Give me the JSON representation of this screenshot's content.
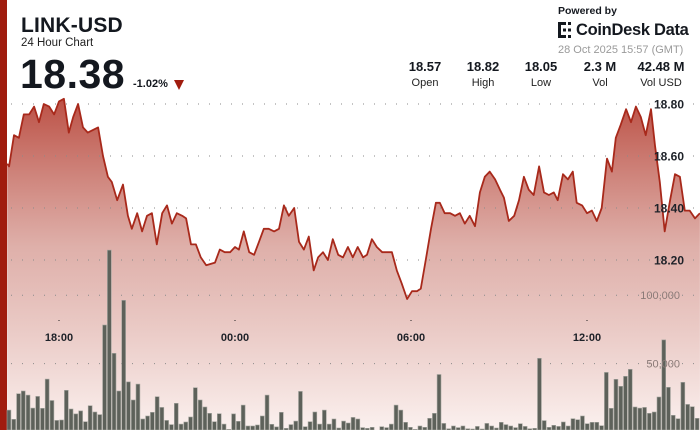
{
  "header": {
    "title": "LINK-USD",
    "subtitle": "24 Hour Chart",
    "price": "18.38",
    "change": "-1.02%",
    "change_direction_icon": "triangle-down-icon"
  },
  "stats": [
    {
      "value": "18.57",
      "label": "Open"
    },
    {
      "value": "18.82",
      "label": "High"
    },
    {
      "value": "18.05",
      "label": "Low"
    },
    {
      "value": "2.3 M",
      "label": "Vol"
    },
    {
      "value": "42.48 M",
      "label": "Vol USD"
    }
  ],
  "branding": {
    "powered_by": "Powered by",
    "logo_text": "CoinDesk Data",
    "timestamp": "28 Oct 2025 15:57 (GMT)"
  },
  "colors": {
    "accent": "#a01c0e",
    "line": "#a8291b",
    "volume_bar": "#5d615a",
    "negative": "#a01c0e"
  },
  "chart_data": {
    "type": "area",
    "price_axis": {
      "ticks": [
        "18.80",
        "18.60",
        "18.40",
        "18.20"
      ],
      "tick_values": [
        18.8,
        18.6,
        18.4,
        18.2
      ],
      "position": "right"
    },
    "volume_axis": {
      "ticks": [
        "100,000",
        "50,000"
      ],
      "tick_values": [
        100000,
        50000
      ]
    },
    "time_axis": {
      "ticks": [
        "18:00",
        "00:00",
        "06:00",
        "12:00"
      ]
    },
    "grid": "dotted",
    "price_series": [
      [
        "16:14",
        18.57
      ],
      [
        "16:18",
        18.56
      ],
      [
        "16:28",
        18.68
      ],
      [
        "16:38",
        18.67
      ],
      [
        "16:48",
        18.76
      ],
      [
        "16:59",
        18.76
      ],
      [
        "17:09",
        18.79
      ],
      [
        "17:19",
        18.73
      ],
      [
        "17:29",
        18.8
      ],
      [
        "17:40",
        18.79
      ],
      [
        "17:50",
        18.76
      ],
      [
        "18:00",
        18.81
      ],
      [
        "18:10",
        18.82
      ],
      [
        "18:20",
        18.69
      ],
      [
        "18:29",
        18.75
      ],
      [
        "18:39",
        18.8
      ],
      [
        "18:49",
        18.71
      ],
      [
        "18:59",
        18.69
      ],
      [
        "19:20",
        18.71
      ],
      [
        "19:30",
        18.6
      ],
      [
        "19:40",
        18.52
      ],
      [
        "19:48",
        18.5
      ],
      [
        "19:59",
        18.43
      ],
      [
        "20:11",
        18.49
      ],
      [
        "20:21",
        18.37
      ],
      [
        "20:29",
        18.32
      ],
      [
        "20:40",
        18.38
      ],
      [
        "20:50",
        18.31
      ],
      [
        "21:00",
        18.37
      ],
      [
        "21:10",
        18.38
      ],
      [
        "21:20",
        18.26
      ],
      [
        "21:31",
        18.38
      ],
      [
        "21:41",
        18.41
      ],
      [
        "21:51",
        18.34
      ],
      [
        "22:01",
        18.38
      ],
      [
        "22:12",
        18.37
      ],
      [
        "22:20",
        18.36
      ],
      [
        "22:30",
        18.26
      ],
      [
        "22:40",
        18.26
      ],
      [
        "22:50",
        18.21
      ],
      [
        "23:01",
        18.18
      ],
      [
        "23:19",
        18.19
      ],
      [
        "23:29",
        18.24
      ],
      [
        "23:39",
        18.23
      ],
      [
        "23:50",
        18.23
      ],
      [
        "00:00",
        18.25
      ],
      [
        "00:08",
        18.24
      ],
      [
        "00:18",
        18.31
      ],
      [
        "00:29",
        18.23
      ],
      [
        "00:39",
        18.22
      ],
      [
        "00:49",
        18.27
      ],
      [
        "00:59",
        18.32
      ],
      [
        "01:09",
        18.32
      ],
      [
        "01:20",
        18.31
      ],
      [
        "01:30",
        18.32
      ],
      [
        "01:40",
        18.41
      ],
      [
        "01:50",
        18.37
      ],
      [
        "02:01",
        18.4
      ],
      [
        "02:11",
        18.27
      ],
      [
        "02:21",
        18.24
      ],
      [
        "02:31",
        18.29
      ],
      [
        "02:41",
        18.16
      ],
      [
        "02:50",
        18.21
      ],
      [
        "03:00",
        18.23
      ],
      [
        "03:10",
        18.2
      ],
      [
        "03:20",
        18.28
      ],
      [
        "03:31",
        18.22
      ],
      [
        "03:41",
        18.21
      ],
      [
        "03:51",
        18.25
      ],
      [
        "04:01",
        18.21
      ],
      [
        "04:11",
        18.25
      ],
      [
        "04:22",
        18.21
      ],
      [
        "04:30",
        18.22
      ],
      [
        "04:40",
        18.28
      ],
      [
        "04:50",
        18.25
      ],
      [
        "05:01",
        18.23
      ],
      [
        "05:11",
        18.23
      ],
      [
        "05:21",
        18.23
      ],
      [
        "05:31",
        18.16
      ],
      [
        "05:41",
        18.11
      ],
      [
        "05:52",
        18.05
      ],
      [
        "06:02",
        18.08
      ],
      [
        "06:12",
        18.08
      ],
      [
        "06:20",
        18.09
      ],
      [
        "06:31",
        18.21
      ],
      [
        "06:41",
        18.32
      ],
      [
        "06:51",
        18.42
      ],
      [
        "06:59",
        18.42
      ],
      [
        "07:09",
        18.38
      ],
      [
        "07:20",
        18.38
      ],
      [
        "07:30",
        18.37
      ],
      [
        "07:40",
        18.38
      ],
      [
        "07:50",
        18.34
      ],
      [
        "08:00",
        18.37
      ],
      [
        "08:11",
        18.33
      ],
      [
        "08:21",
        18.46
      ],
      [
        "08:31",
        18.52
      ],
      [
        "08:41",
        18.54
      ],
      [
        "08:52",
        18.51
      ],
      [
        "09:02",
        18.47
      ],
      [
        "09:10",
        18.44
      ],
      [
        "09:20",
        18.35
      ],
      [
        "09:31",
        18.37
      ],
      [
        "09:41",
        18.43
      ],
      [
        "09:51",
        18.52
      ],
      [
        "10:01",
        18.47
      ],
      [
        "10:11",
        18.45
      ],
      [
        "10:22",
        18.56
      ],
      [
        "10:32",
        18.46
      ],
      [
        "10:42",
        18.45
      ],
      [
        "10:52",
        18.46
      ],
      [
        "11:00",
        18.43
      ],
      [
        "11:11",
        18.53
      ],
      [
        "11:21",
        18.51
      ],
      [
        "11:31",
        18.54
      ],
      [
        "11:39",
        18.42
      ],
      [
        "11:50",
        18.41
      ],
      [
        "12:00",
        18.38
      ],
      [
        "12:10",
        18.39
      ],
      [
        "12:20",
        18.35
      ],
      [
        "12:30",
        18.4
      ],
      [
        "12:41",
        18.59
      ],
      [
        "12:51",
        18.54
      ],
      [
        "12:59",
        18.67
      ],
      [
        "13:09",
        18.72
      ],
      [
        "13:20",
        18.78
      ],
      [
        "13:30",
        18.73
      ],
      [
        "13:40",
        18.79
      ],
      [
        "13:50",
        18.75
      ],
      [
        "14:00",
        18.68
      ],
      [
        "14:11",
        18.78
      ],
      [
        "14:19",
        18.64
      ],
      [
        "14:29",
        18.5
      ],
      [
        "14:39",
        18.31
      ],
      [
        "14:50",
        18.43
      ],
      [
        "15:00",
        18.53
      ],
      [
        "15:10",
        18.52
      ],
      [
        "15:20",
        18.39
      ],
      [
        "15:30",
        18.39
      ],
      [
        "15:41",
        18.36
      ],
      [
        "15:51",
        18.38
      ]
    ],
    "volume_series": [
      16000,
      9300,
      28000,
      30000,
      27000,
      17500,
      26000,
      17300,
      38700,
      23000,
      8500,
      8800,
      30500,
      16800,
      13200,
      15400,
      7500,
      19200,
      14600,
      12700,
      78200,
      133000,
      57500,
      30000,
      96300,
      36600,
      23400,
      35000,
      9500,
      11700,
      14400,
      25800,
      18000,
      8500,
      5400,
      21000,
      5800,
      7300,
      11000,
      32400,
      23400,
      18300,
      13700,
      7500,
      13400,
      5800,
      2000,
      13200,
      7800,
      19700,
      4400,
      4400,
      5100,
      11700,
      27000,
      5600,
      3700,
      14400,
      2700,
      5400,
      8000,
      29700,
      3900,
      7500,
      14600,
      5800,
      16000,
      5800,
      9500,
      2900,
      8000,
      6600,
      10700,
      9500,
      3200,
      2700,
      3400,
      500,
      3900,
      3200,
      5800,
      19700,
      16000,
      7100,
      3400,
      2000,
      4400,
      3400,
      10000,
      13700,
      42000,
      6300,
      2400,
      4400,
      3200,
      4400,
      2400,
      2200,
      4100,
      2200,
      6300,
      4400,
      2900,
      7100,
      5400,
      4400,
      3200,
      6100,
      4100,
      2400,
      2700,
      53900,
      8300,
      3400,
      4900,
      4100,
      7300,
      4400,
      9700,
      9000,
      11700,
      6100,
      7100,
      7100,
      4600,
      43600,
      17300,
      38500,
      33400,
      40700,
      45800,
      18300,
      17500,
      18000,
      13700,
      14600,
      25600,
      67300,
      32700,
      12200,
      9700,
      36300,
      20200,
      18500,
      10000
    ]
  }
}
